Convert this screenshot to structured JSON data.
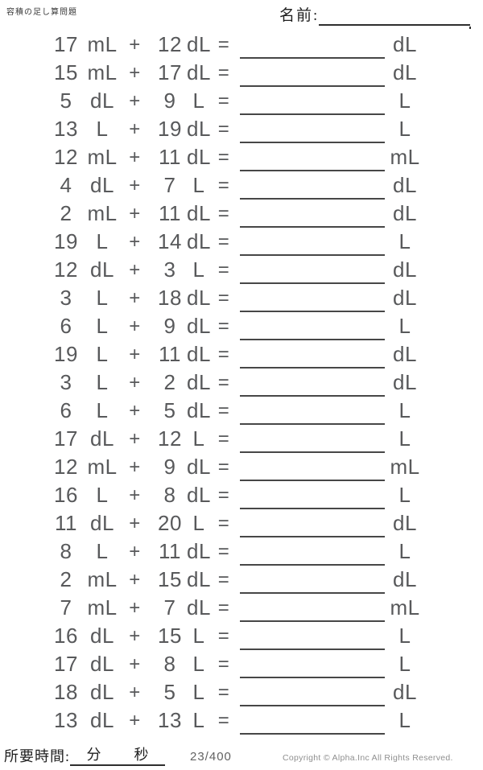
{
  "header": {
    "worksheet_title": "容積の足し算問題",
    "name_label": "名前:"
  },
  "symbols": {
    "plus": "+",
    "equals": "="
  },
  "problems": [
    {
      "n1": "17",
      "u1": "mL",
      "n2": "12",
      "u2": "dL",
      "answer_unit": "dL"
    },
    {
      "n1": "15",
      "u1": "mL",
      "n2": "17",
      "u2": "dL",
      "answer_unit": "dL"
    },
    {
      "n1": "5",
      "u1": "dL",
      "n2": "9",
      "u2": "L",
      "answer_unit": "L"
    },
    {
      "n1": "13",
      "u1": "L",
      "n2": "19",
      "u2": "dL",
      "answer_unit": "L"
    },
    {
      "n1": "12",
      "u1": "mL",
      "n2": "11",
      "u2": "dL",
      "answer_unit": "mL"
    },
    {
      "n1": "4",
      "u1": "dL",
      "n2": "7",
      "u2": "L",
      "answer_unit": "dL"
    },
    {
      "n1": "2",
      "u1": "mL",
      "n2": "11",
      "u2": "dL",
      "answer_unit": "dL"
    },
    {
      "n1": "19",
      "u1": "L",
      "n2": "14",
      "u2": "dL",
      "answer_unit": "L"
    },
    {
      "n1": "12",
      "u1": "dL",
      "n2": "3",
      "u2": "L",
      "answer_unit": "dL"
    },
    {
      "n1": "3",
      "u1": "L",
      "n2": "18",
      "u2": "dL",
      "answer_unit": "dL"
    },
    {
      "n1": "6",
      "u1": "L",
      "n2": "9",
      "u2": "dL",
      "answer_unit": "L"
    },
    {
      "n1": "19",
      "u1": "L",
      "n2": "11",
      "u2": "dL",
      "answer_unit": "dL"
    },
    {
      "n1": "3",
      "u1": "L",
      "n2": "2",
      "u2": "dL",
      "answer_unit": "dL"
    },
    {
      "n1": "6",
      "u1": "L",
      "n2": "5",
      "u2": "dL",
      "answer_unit": "L"
    },
    {
      "n1": "17",
      "u1": "dL",
      "n2": "12",
      "u2": "L",
      "answer_unit": "L"
    },
    {
      "n1": "12",
      "u1": "mL",
      "n2": "9",
      "u2": "dL",
      "answer_unit": "mL"
    },
    {
      "n1": "16",
      "u1": "L",
      "n2": "8",
      "u2": "dL",
      "answer_unit": "L"
    },
    {
      "n1": "11",
      "u1": "dL",
      "n2": "20",
      "u2": "L",
      "answer_unit": "dL"
    },
    {
      "n1": "8",
      "u1": "L",
      "n2": "11",
      "u2": "dL",
      "answer_unit": "L"
    },
    {
      "n1": "2",
      "u1": "mL",
      "n2": "15",
      "u2": "dL",
      "answer_unit": "dL"
    },
    {
      "n1": "7",
      "u1": "mL",
      "n2": "7",
      "u2": "dL",
      "answer_unit": "mL"
    },
    {
      "n1": "16",
      "u1": "dL",
      "n2": "15",
      "u2": "L",
      "answer_unit": "L"
    },
    {
      "n1": "17",
      "u1": "dL",
      "n2": "8",
      "u2": "L",
      "answer_unit": "L"
    },
    {
      "n1": "18",
      "u1": "dL",
      "n2": "5",
      "u2": "L",
      "answer_unit": "dL"
    },
    {
      "n1": "13",
      "u1": "dL",
      "n2": "13",
      "u2": "L",
      "answer_unit": "L"
    }
  ],
  "footer": {
    "time_label": "所要時間:",
    "minutes_label": "分",
    "seconds_label": "秒",
    "page_number": "23/400",
    "copyright": "Copyright © Alpha.Inc All Rights Reserved."
  }
}
